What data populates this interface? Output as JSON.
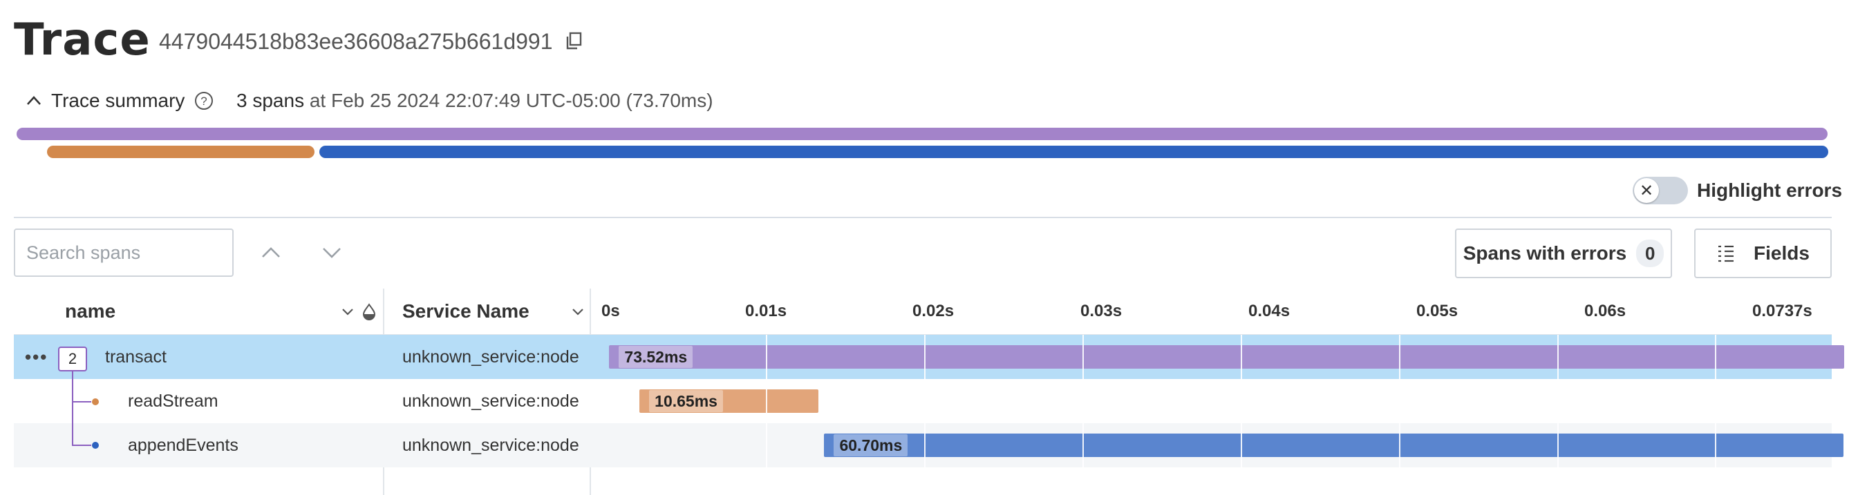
{
  "header": {
    "title": "Trace",
    "trace_id": "4479044518b83ee36608a275b661d991"
  },
  "summary": {
    "label": "Trace summary",
    "span_count": "3 spans",
    "details": "at Feb 25 2024 22:07:49 UTC-05:00 (73.70ms)"
  },
  "colors": {
    "transact": "#a383c9",
    "readStream": "#d3894c",
    "appendEvents": "#2d62bf",
    "row_selected": "#b6ddf7",
    "row_alt": "#f4f6f8"
  },
  "highlight_errors": {
    "label": "Highlight errors",
    "enabled": false
  },
  "search": {
    "placeholder": "Search spans",
    "value": ""
  },
  "buttons": {
    "spans_with_errors": "Spans with errors",
    "spans_with_errors_count": "0",
    "fields": "Fields"
  },
  "table": {
    "col_name": "name",
    "col_service": "Service Name",
    "ticks": [
      "0s",
      "0.01s",
      "0.02s",
      "0.03s",
      "0.04s",
      "0.05s",
      "0.06s",
      "0.0737s"
    ],
    "rows": [
      {
        "name": "transact",
        "child_count": "2",
        "service": "unknown_service:node",
        "duration": "73.52ms",
        "start_ms": 0.1,
        "dur_ms": 73.52
      },
      {
        "name": "readStream",
        "service": "unknown_service:node",
        "duration": "10.65ms",
        "start_ms": 1.9,
        "dur_ms": 10.65
      },
      {
        "name": "appendEvents",
        "service": "unknown_service:node",
        "duration": "60.70ms",
        "start_ms": 12.9,
        "dur_ms": 60.7
      }
    ]
  }
}
